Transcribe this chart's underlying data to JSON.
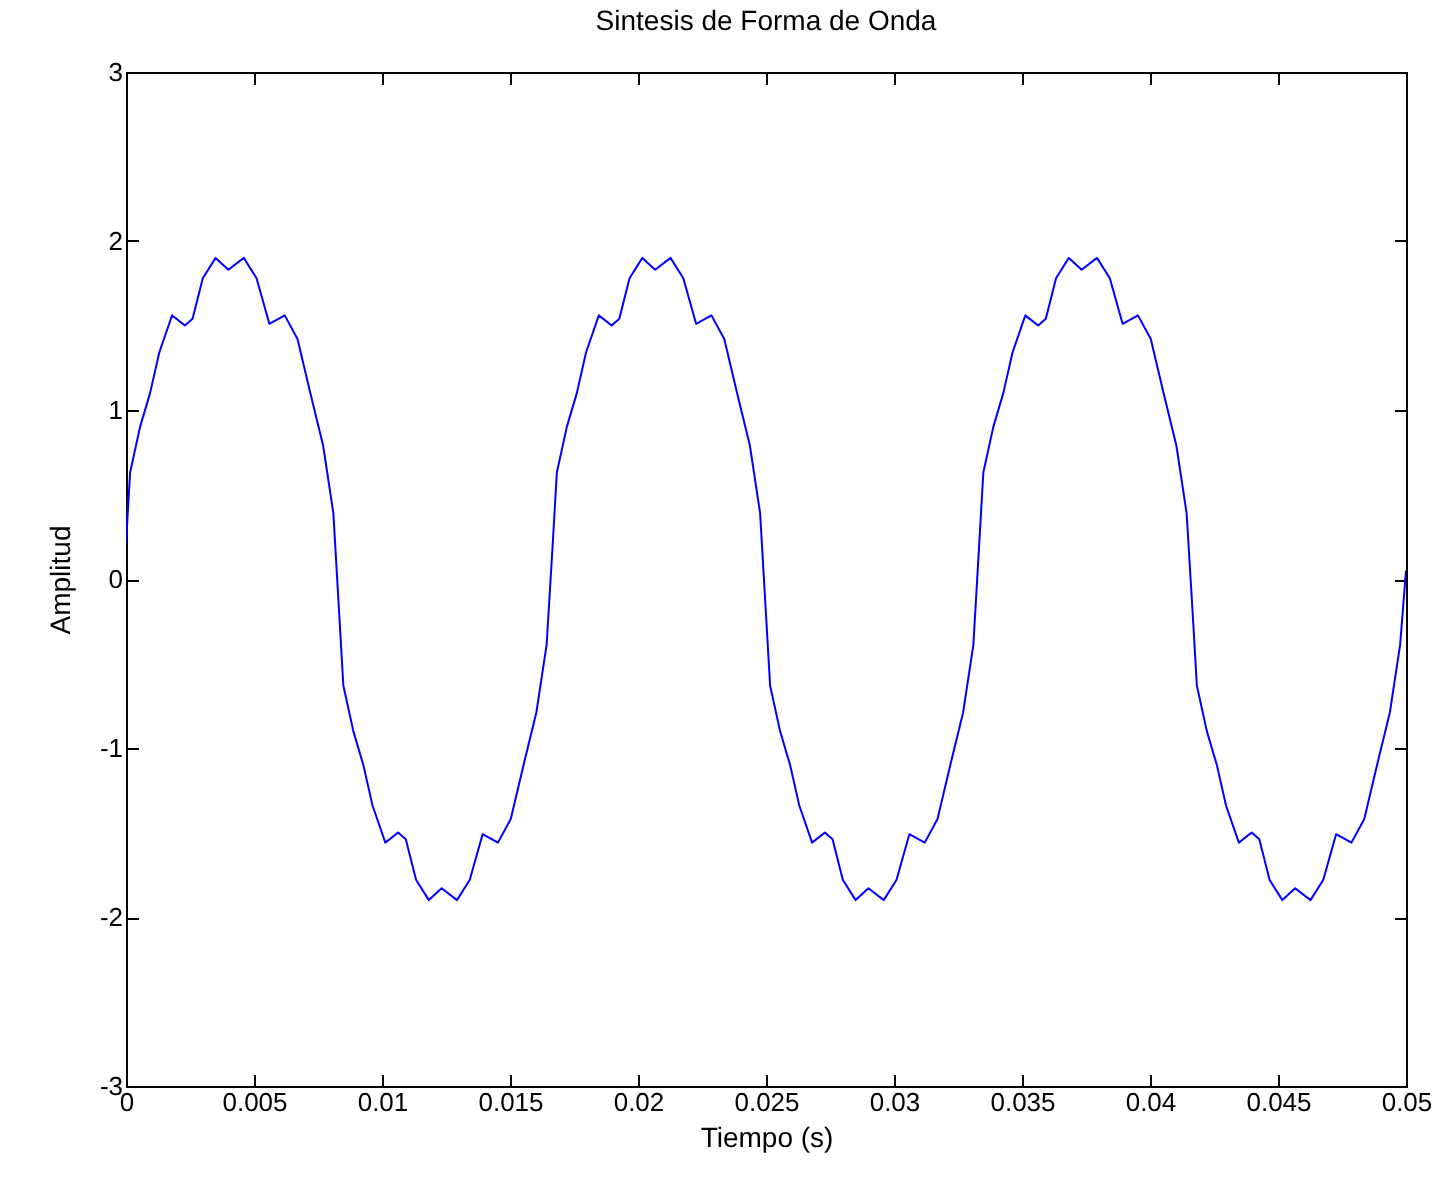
{
  "chart_data": {
    "type": "line",
    "title": "Sintesis de Forma de Onda",
    "xlabel": "Tiempo (s)",
    "ylabel": "Amplitud",
    "x": [
      0,
      0.00016,
      0.00055,
      0.00094,
      0.0013,
      0.0018,
      0.0023,
      0.0026,
      0.003,
      0.0035,
      0.004,
      0.0046,
      0.0051,
      0.0056,
      0.0062,
      0.0067,
      0.0072,
      0.0077,
      0.0081,
      0.00833,
      0.00849,
      0.00888,
      0.00927,
      0.00963,
      0.01013,
      0.01063,
      0.01093,
      0.01133,
      0.01183,
      0.01233,
      0.01293,
      0.01343,
      0.01393,
      0.01453,
      0.01503,
      0.01553,
      0.01603,
      0.01643,
      0.01667,
      0.01683,
      0.01722,
      0.01761,
      0.01797,
      0.01847,
      0.01897,
      0.01927,
      0.01967,
      0.02017,
      0.02067,
      0.02127,
      0.02177,
      0.02227,
      0.02287,
      0.02337,
      0.02387,
      0.02437,
      0.02477,
      0.025,
      0.02516,
      0.02555,
      0.02594,
      0.0263,
      0.0268,
      0.0273,
      0.0276,
      0.028,
      0.0285,
      0.029,
      0.0296,
      0.0301,
      0.0306,
      0.0312,
      0.0317,
      0.0322,
      0.0327,
      0.0331,
      0.03333,
      0.03349,
      0.03388,
      0.03427,
      0.03463,
      0.03513,
      0.03563,
      0.03593,
      0.03633,
      0.03683,
      0.03733,
      0.03793,
      0.03843,
      0.03893,
      0.03953,
      0.04003,
      0.04053,
      0.04103,
      0.04143,
      0.04167,
      0.04183,
      0.04222,
      0.04261,
      0.04297,
      0.04347,
      0.04397,
      0.04427,
      0.04467,
      0.04517,
      0.04567,
      0.04627,
      0.04677,
      0.04727,
      0.04787,
      0.04837,
      0.04887,
      0.04937,
      0.04977,
      0.05
    ],
    "series": [
      {
        "color": "#0000ff",
        "values": [
          0.21,
          0.63,
          0.9,
          1.1,
          1.34,
          1.56,
          1.5,
          1.54,
          1.78,
          1.9,
          1.83,
          1.9,
          1.78,
          1.51,
          1.56,
          1.42,
          1.1,
          0.79,
          0.39,
          -0.21,
          -0.63,
          -0.9,
          -1.1,
          -1.34,
          -1.56,
          -1.5,
          -1.54,
          -1.78,
          -1.9,
          -1.83,
          -1.9,
          -1.78,
          -1.51,
          -1.56,
          -1.42,
          -1.1,
          -0.79,
          -0.39,
          0.21,
          0.63,
          0.9,
          1.1,
          1.34,
          1.56,
          1.5,
          1.54,
          1.78,
          1.9,
          1.83,
          1.9,
          1.78,
          1.51,
          1.56,
          1.42,
          1.1,
          0.79,
          0.39,
          -0.21,
          -0.63,
          -0.9,
          -1.1,
          -1.34,
          -1.56,
          -1.5,
          -1.54,
          -1.78,
          -1.9,
          -1.83,
          -1.9,
          -1.78,
          -1.51,
          -1.56,
          -1.42,
          -1.1,
          -0.79,
          -0.39,
          0.21,
          0.63,
          0.9,
          1.1,
          1.34,
          1.56,
          1.5,
          1.54,
          1.78,
          1.9,
          1.83,
          1.9,
          1.78,
          1.51,
          1.56,
          1.42,
          1.1,
          0.79,
          0.39,
          -0.21,
          -0.63,
          -0.9,
          -1.1,
          -1.34,
          -1.56,
          -1.5,
          -1.54,
          -1.78,
          -1.9,
          -1.83,
          -1.9,
          -1.78,
          -1.51,
          -1.56,
          -1.42,
          -1.1,
          -0.79,
          -0.39,
          0.05
        ]
      }
    ],
    "xlim": [
      0,
      0.05
    ],
    "ylim": [
      -3,
      3
    ],
    "xticks": [
      0,
      0.005,
      0.01,
      0.015,
      0.02,
      0.025,
      0.03,
      0.035,
      0.04,
      0.045,
      0.05
    ],
    "yticks": [
      -3,
      -2,
      -1,
      0,
      1,
      2,
      3
    ],
    "grid": false
  }
}
